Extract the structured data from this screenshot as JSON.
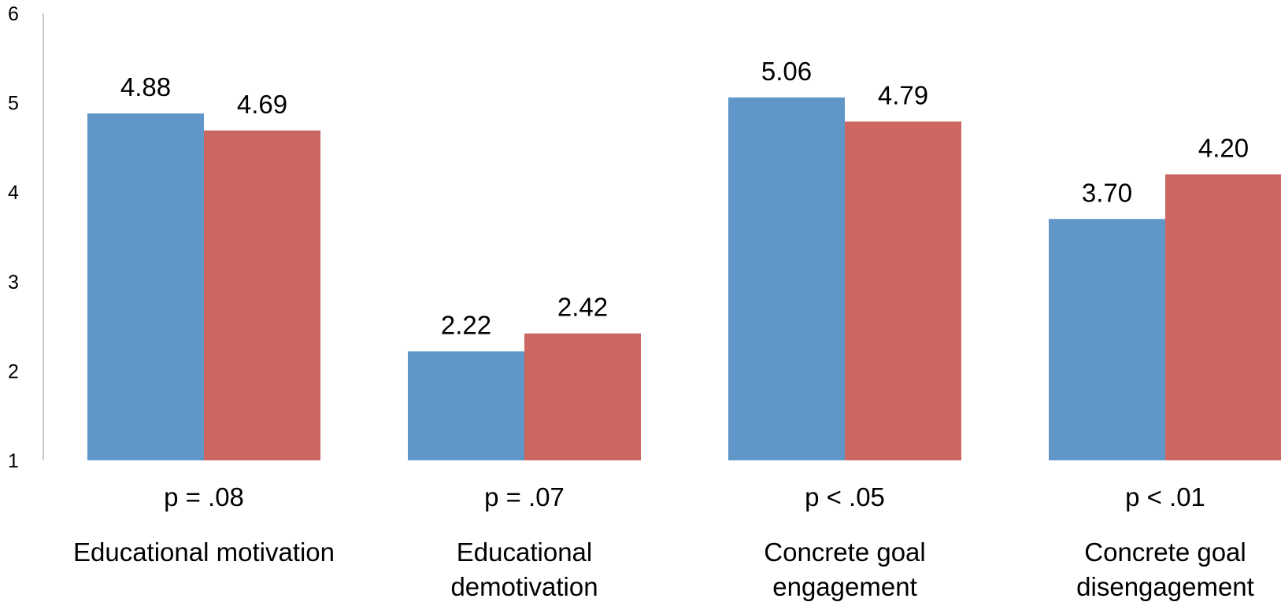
{
  "chart_data": {
    "type": "bar",
    "categories": [
      [
        "Educational motivation"
      ],
      [
        "Educational",
        "demotivation"
      ],
      [
        "Concrete goal",
        "engagement"
      ],
      [
        "Concrete goal",
        "disengagement"
      ]
    ],
    "p_values": [
      "p = .08",
      "p = .07",
      "p < .05",
      "p < .01"
    ],
    "series": [
      {
        "color": "#6096c8",
        "values": [
          4.88,
          2.22,
          5.06,
          3.7
        ],
        "labels": [
          "4.88",
          "2.22",
          "5.06",
          "3.70"
        ]
      },
      {
        "color": "#cc6660",
        "values": [
          4.69,
          2.42,
          4.79,
          4.2
        ],
        "labels": [
          "4.69",
          "2.42",
          "4.79",
          "4.20"
        ]
      }
    ],
    "yticks": [
      "1",
      "2",
      "3",
      "4",
      "5",
      "6"
    ],
    "ylim": [
      1,
      6
    ],
    "title": "",
    "xlabel": "",
    "ylabel": "",
    "grid": false,
    "legend": "none"
  }
}
